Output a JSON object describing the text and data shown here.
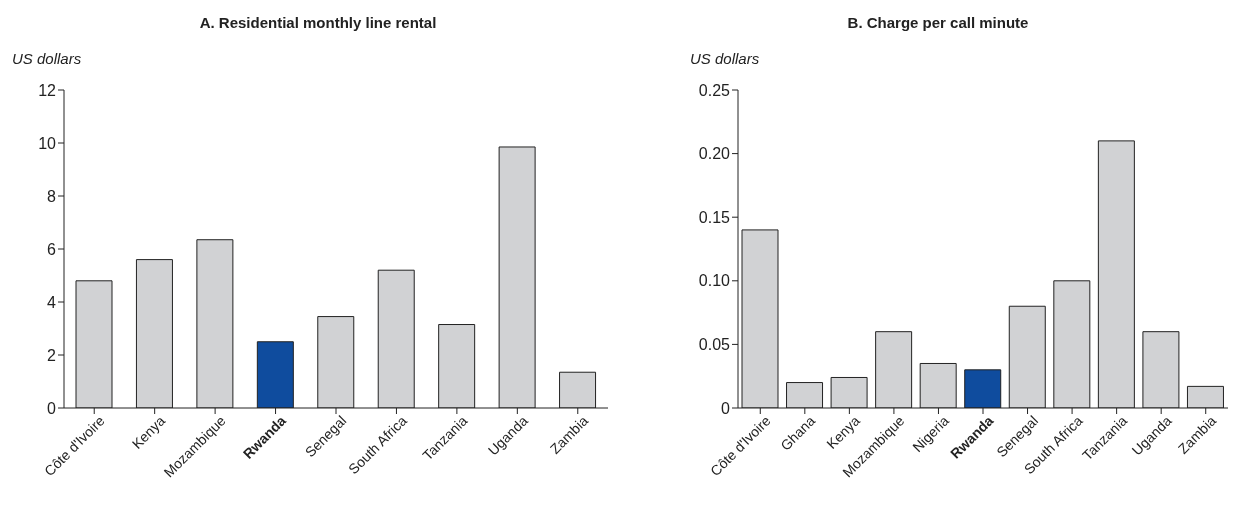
{
  "chart_data": [
    {
      "type": "bar",
      "title": "A. Residential monthly line rental",
      "ylabel": "US dollars",
      "categories": [
        "Côte d'Ivoire",
        "Kenya",
        "Mozambique",
        "Rwanda",
        "Senegal",
        "South Africa",
        "Tanzania",
        "Uganda",
        "Zambia"
      ],
      "values": [
        4.8,
        5.6,
        6.35,
        2.5,
        3.45,
        5.2,
        3.15,
        9.85,
        1.35
      ],
      "colors": [
        "#d1d2d4",
        "#d1d2d4",
        "#d1d2d4",
        "#0f4c9e",
        "#d1d2d4",
        "#d1d2d4",
        "#d1d2d4",
        "#d1d2d4",
        "#d1d2d4"
      ],
      "ylim": [
        0,
        12
      ],
      "yticks": [
        0,
        2,
        4,
        6,
        8,
        10,
        12
      ],
      "grid": false,
      "legend": false
    },
    {
      "type": "bar",
      "title": "B. Charge per call minute",
      "ylabel": "US dollars",
      "categories": [
        "Côte d'Ivoire",
        "Ghana",
        "Kenya",
        "Mozambique",
        "Nigeria",
        "Rwanda",
        "Senegal",
        "South Africa",
        "Tanzania",
        "Uganda",
        "Zambia"
      ],
      "values": [
        0.14,
        0.02,
        0.024,
        0.06,
        0.035,
        0.03,
        0.08,
        0.1,
        0.21,
        0.06,
        0.017
      ],
      "colors": [
        "#d1d2d4",
        "#d1d2d4",
        "#d1d2d4",
        "#d1d2d4",
        "#d1d2d4",
        "#0f4c9e",
        "#d1d2d4",
        "#d1d2d4",
        "#d1d2d4",
        "#d1d2d4",
        "#d1d2d4"
      ],
      "ylim": [
        0,
        0.25
      ],
      "yticks": [
        0,
        {
          "value": 0.05,
          "label": "0.05"
        },
        {
          "value": 0.1,
          "label": "0.10"
        },
        {
          "value": 0.15,
          "label": "0.15"
        },
        {
          "value": 0.2,
          "label": "0.20"
        },
        {
          "value": 0.25,
          "label": "0.25"
        }
      ],
      "grid": false,
      "legend": false
    }
  ]
}
